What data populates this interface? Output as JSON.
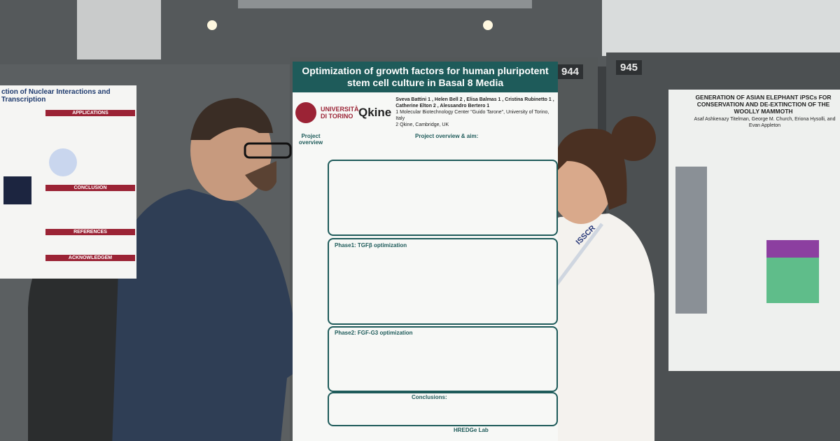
{
  "boards": [
    {
      "number": "944"
    },
    {
      "number": "945"
    }
  ],
  "center_poster": {
    "title": "Optimization of growth factors for human pluripotent stem cell culture in Basal 8 Media",
    "logos": [
      "UNIVERSITÀ DI TORINO",
      "Qkine"
    ],
    "authors": "Sveva Battini 1 , Helen Bell 2 , Elisa Balmas 1 , Cristina Rubinetto 1 , Catherine Elton 2 , Alessandro Bertero 1",
    "affiliations": [
      "1 Molecular Biotechnology Center \"Guido Tarone\", University of Torino, Italy",
      "2 Qkine, Cambridge, UK"
    ],
    "sections": [
      "Project overview",
      "Project overview & aim:",
      "Phase1: TGFβ optimization",
      "Phase2: FGF-G3 optimization",
      "Conclusions:"
    ],
    "lab": "HREDGe Lab"
  },
  "right_poster": {
    "title": "GENERATION OF ASIAN ELEPHANT iPSCs FOR CONSERVATION AND DE-EXTINCTION OF THE WOOLLY MAMMOTH",
    "authors": "Asaf Ashkenazy Titelman, George M. Church, Eriona Hysolli, and Evan Appleton"
  },
  "left_poster": {
    "title": "ction of Nuclear Interactions and Transcription",
    "headings": [
      "APPLICATIONS",
      "CONCLUSION",
      "REFERENCES",
      "ACKNOWLEDGEM"
    ]
  },
  "badge": "ISSCR"
}
